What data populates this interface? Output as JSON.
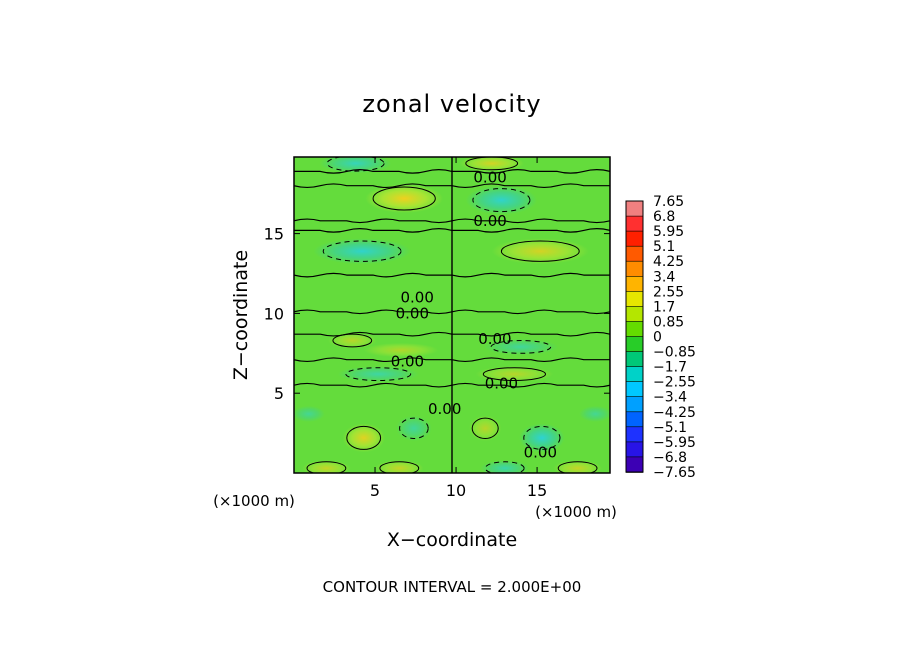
{
  "chart_data": {
    "type": "heatmap",
    "title": "zonal velocity",
    "xlabel": "X−coordinate",
    "ylabel": "Z−coordinate",
    "x_unit_left": "(×1000 m)",
    "x_unit_right": "(×1000 m)",
    "xlim": [
      0,
      19.5
    ],
    "ylim": [
      0,
      19.8
    ],
    "x_ticks": [
      5,
      10,
      15
    ],
    "y_ticks": [
      5,
      10,
      15
    ],
    "footer": "CONTOUR INTERVAL = 2.000E+00",
    "contour_label": "0.00",
    "contour_labels": [
      {
        "text": "0.00",
        "x": 12.1,
        "z": 18.5
      },
      {
        "text": "0.00",
        "x": 12.1,
        "z": 15.8
      },
      {
        "text": "0.00",
        "x": 7.6,
        "z": 11.0
      },
      {
        "text": "0.00",
        "x": 7.3,
        "z": 10.0
      },
      {
        "text": "0.00",
        "x": 12.4,
        "z": 8.4
      },
      {
        "text": "0.00",
        "x": 7.0,
        "z": 7.0
      },
      {
        "text": "0.00",
        "x": 12.8,
        "z": 5.6
      },
      {
        "text": "0.00",
        "x": 9.3,
        "z": 4.0
      },
      {
        "text": "0.00",
        "x": 15.2,
        "z": 1.3
      }
    ],
    "colorbar": {
      "labels": [
        "7.65",
        "6.8",
        "5.95",
        "5.1",
        "4.25",
        "3.4",
        "2.55",
        "1.7",
        "0.85",
        "0",
        "−0.85",
        "−1.7",
        "−2.55",
        "−3.4",
        "−4.25",
        "−5.1",
        "−5.95",
        "−6.8",
        "−7.65"
      ],
      "colors": [
        "#f08080",
        "#ff3030",
        "#ff2000",
        "#ff5a00",
        "#ff8c00",
        "#ffb400",
        "#e6e600",
        "#b4e600",
        "#64dc00",
        "#28cd28",
        "#00c878",
        "#00d2c8",
        "#00c8ff",
        "#00a0ff",
        "#0064ff",
        "#1e32ff",
        "#2814e6",
        "#3c00b4",
        "#5000a0"
      ]
    },
    "field_colors": {
      "base": "#64dc3c",
      "positive_weak": "#b4e632",
      "positive_strong": "#f0d01e",
      "negative_weak": "#3cd296",
      "negative_strong": "#2ad2dc"
    },
    "anomalies": [
      {
        "kind": "pos",
        "x": 6.8,
        "z": 17.2,
        "rx": 2.4,
        "rz": 0.9,
        "strength": 1.0
      },
      {
        "kind": "neg",
        "x": 12.8,
        "z": 17.1,
        "rx": 2.2,
        "rz": 0.9,
        "strength": 0.9
      },
      {
        "kind": "neg",
        "x": 3.8,
        "z": 19.4,
        "rx": 2.2,
        "rz": 0.6,
        "strength": 0.8
      },
      {
        "kind": "pos",
        "x": 12.2,
        "z": 19.4,
        "rx": 2.0,
        "rz": 0.5,
        "strength": 0.8
      },
      {
        "kind": "neg",
        "x": 4.2,
        "z": 13.9,
        "rx": 3.0,
        "rz": 0.8,
        "strength": 0.9
      },
      {
        "kind": "pos",
        "x": 15.2,
        "z": 13.9,
        "rx": 3.0,
        "rz": 0.8,
        "strength": 0.8
      },
      {
        "kind": "pos",
        "x": 3.6,
        "z": 8.3,
        "rx": 1.5,
        "rz": 0.5,
        "strength": 0.6
      },
      {
        "kind": "pos",
        "x": 6.6,
        "z": 7.7,
        "rx": 2.3,
        "rz": 0.45,
        "strength": 0.55
      },
      {
        "kind": "neg",
        "x": 14.0,
        "z": 7.9,
        "rx": 2.3,
        "rz": 0.5,
        "strength": 0.6
      },
      {
        "kind": "neg",
        "x": 5.2,
        "z": 6.2,
        "rx": 2.5,
        "rz": 0.5,
        "strength": 0.65
      },
      {
        "kind": "pos",
        "x": 13.6,
        "z": 6.2,
        "rx": 2.4,
        "rz": 0.5,
        "strength": 0.6
      },
      {
        "kind": "neg",
        "x": 0.9,
        "z": 3.7,
        "rx": 1.0,
        "rz": 0.5,
        "strength": 0.55
      },
      {
        "kind": "neg",
        "x": 18.6,
        "z": 3.7,
        "rx": 1.0,
        "rz": 0.5,
        "strength": 0.55
      },
      {
        "kind": "pos",
        "x": 4.3,
        "z": 2.2,
        "rx": 1.3,
        "rz": 0.9,
        "strength": 0.9
      },
      {
        "kind": "neg",
        "x": 7.4,
        "z": 2.8,
        "rx": 1.1,
        "rz": 0.8,
        "strength": 0.6
      },
      {
        "kind": "neg",
        "x": 15.3,
        "z": 2.2,
        "rx": 1.4,
        "rz": 0.9,
        "strength": 0.95
      },
      {
        "kind": "pos",
        "x": 11.8,
        "z": 2.8,
        "rx": 1.0,
        "rz": 0.8,
        "strength": 0.6
      },
      {
        "kind": "pos",
        "x": 2.0,
        "z": 0.3,
        "rx": 1.5,
        "rz": 0.5,
        "strength": 0.7
      },
      {
        "kind": "pos",
        "x": 6.5,
        "z": 0.3,
        "rx": 1.5,
        "rz": 0.5,
        "strength": 0.7
      },
      {
        "kind": "neg",
        "x": 13.0,
        "z": 0.3,
        "rx": 1.5,
        "rz": 0.5,
        "strength": 0.7
      },
      {
        "kind": "pos",
        "x": 17.5,
        "z": 0.3,
        "rx": 1.5,
        "rz": 0.5,
        "strength": 0.7
      }
    ],
    "zero_contours_z": [
      18.9,
      18.0,
      15.8,
      15.2,
      12.4,
      10.1,
      8.7,
      7.1,
      5.5
    ]
  }
}
